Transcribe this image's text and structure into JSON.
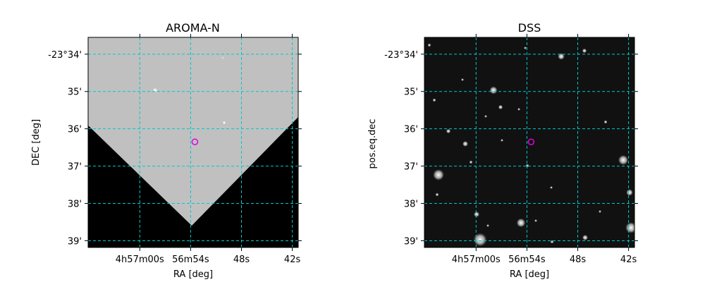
{
  "chart_data": [
    {
      "type": "image",
      "title": "AROMA-N",
      "xlabel": "RA [deg]",
      "ylabel": "DEC [deg]",
      "x_ticks": [
        {
          "label": "4h57m00s",
          "ra_sec": 60
        },
        {
          "label": "56m54s",
          "ra_sec": 54
        },
        {
          "label": "48s",
          "ra_sec": 48
        },
        {
          "label": "42s",
          "ra_sec": 42
        }
      ],
      "y_ticks": [
        {
          "label": "-23°34'",
          "dec_arcmin": 34
        },
        {
          "label": "35'",
          "dec_arcmin": 35
        },
        {
          "label": "36'",
          "dec_arcmin": 36
        },
        {
          "label": "37'",
          "dec_arcmin": 37
        },
        {
          "label": "38'",
          "dec_arcmin": 38
        },
        {
          "label": "39'",
          "dec_arcmin": 39
        }
      ],
      "xlim_ra_sec": [
        66.1,
        41.3
      ],
      "ylim_dec_arcmin": [
        33.55,
        39.18
      ],
      "target": {
        "ra_sec": 53.5,
        "dec_arcmin": 36.35
      },
      "grid": true,
      "background": "dark",
      "image_style": "gray-wedge"
    },
    {
      "type": "image",
      "title": "DSS",
      "xlabel": "RA [deg]",
      "ylabel": "pos.eq.dec",
      "x_ticks": [
        {
          "label": "4h57m00s",
          "ra_sec": 60
        },
        {
          "label": "56m54s",
          "ra_sec": 54
        },
        {
          "label": "48s",
          "ra_sec": 48
        },
        {
          "label": "42s",
          "ra_sec": 42
        }
      ],
      "y_ticks": [
        {
          "label": "-23°34'",
          "dec_arcmin": 34
        },
        {
          "label": "35'",
          "dec_arcmin": 35
        },
        {
          "label": "36'",
          "dec_arcmin": 36
        },
        {
          "label": "37'",
          "dec_arcmin": 37
        },
        {
          "label": "38'",
          "dec_arcmin": 38
        },
        {
          "label": "39'",
          "dec_arcmin": 39
        }
      ],
      "xlim_ra_sec": [
        66.1,
        41.3
      ],
      "ylim_dec_arcmin": [
        33.55,
        39.18
      ],
      "target": {
        "ra_sec": 53.5,
        "dec_arcmin": 36.35
      },
      "grid": true,
      "background": "dark",
      "image_style": "star-field"
    }
  ],
  "colors": {
    "grid": "#00c8c8",
    "target_marker": "#e000e0",
    "survey_fill": "#c0c0c0",
    "background": "#000000"
  }
}
